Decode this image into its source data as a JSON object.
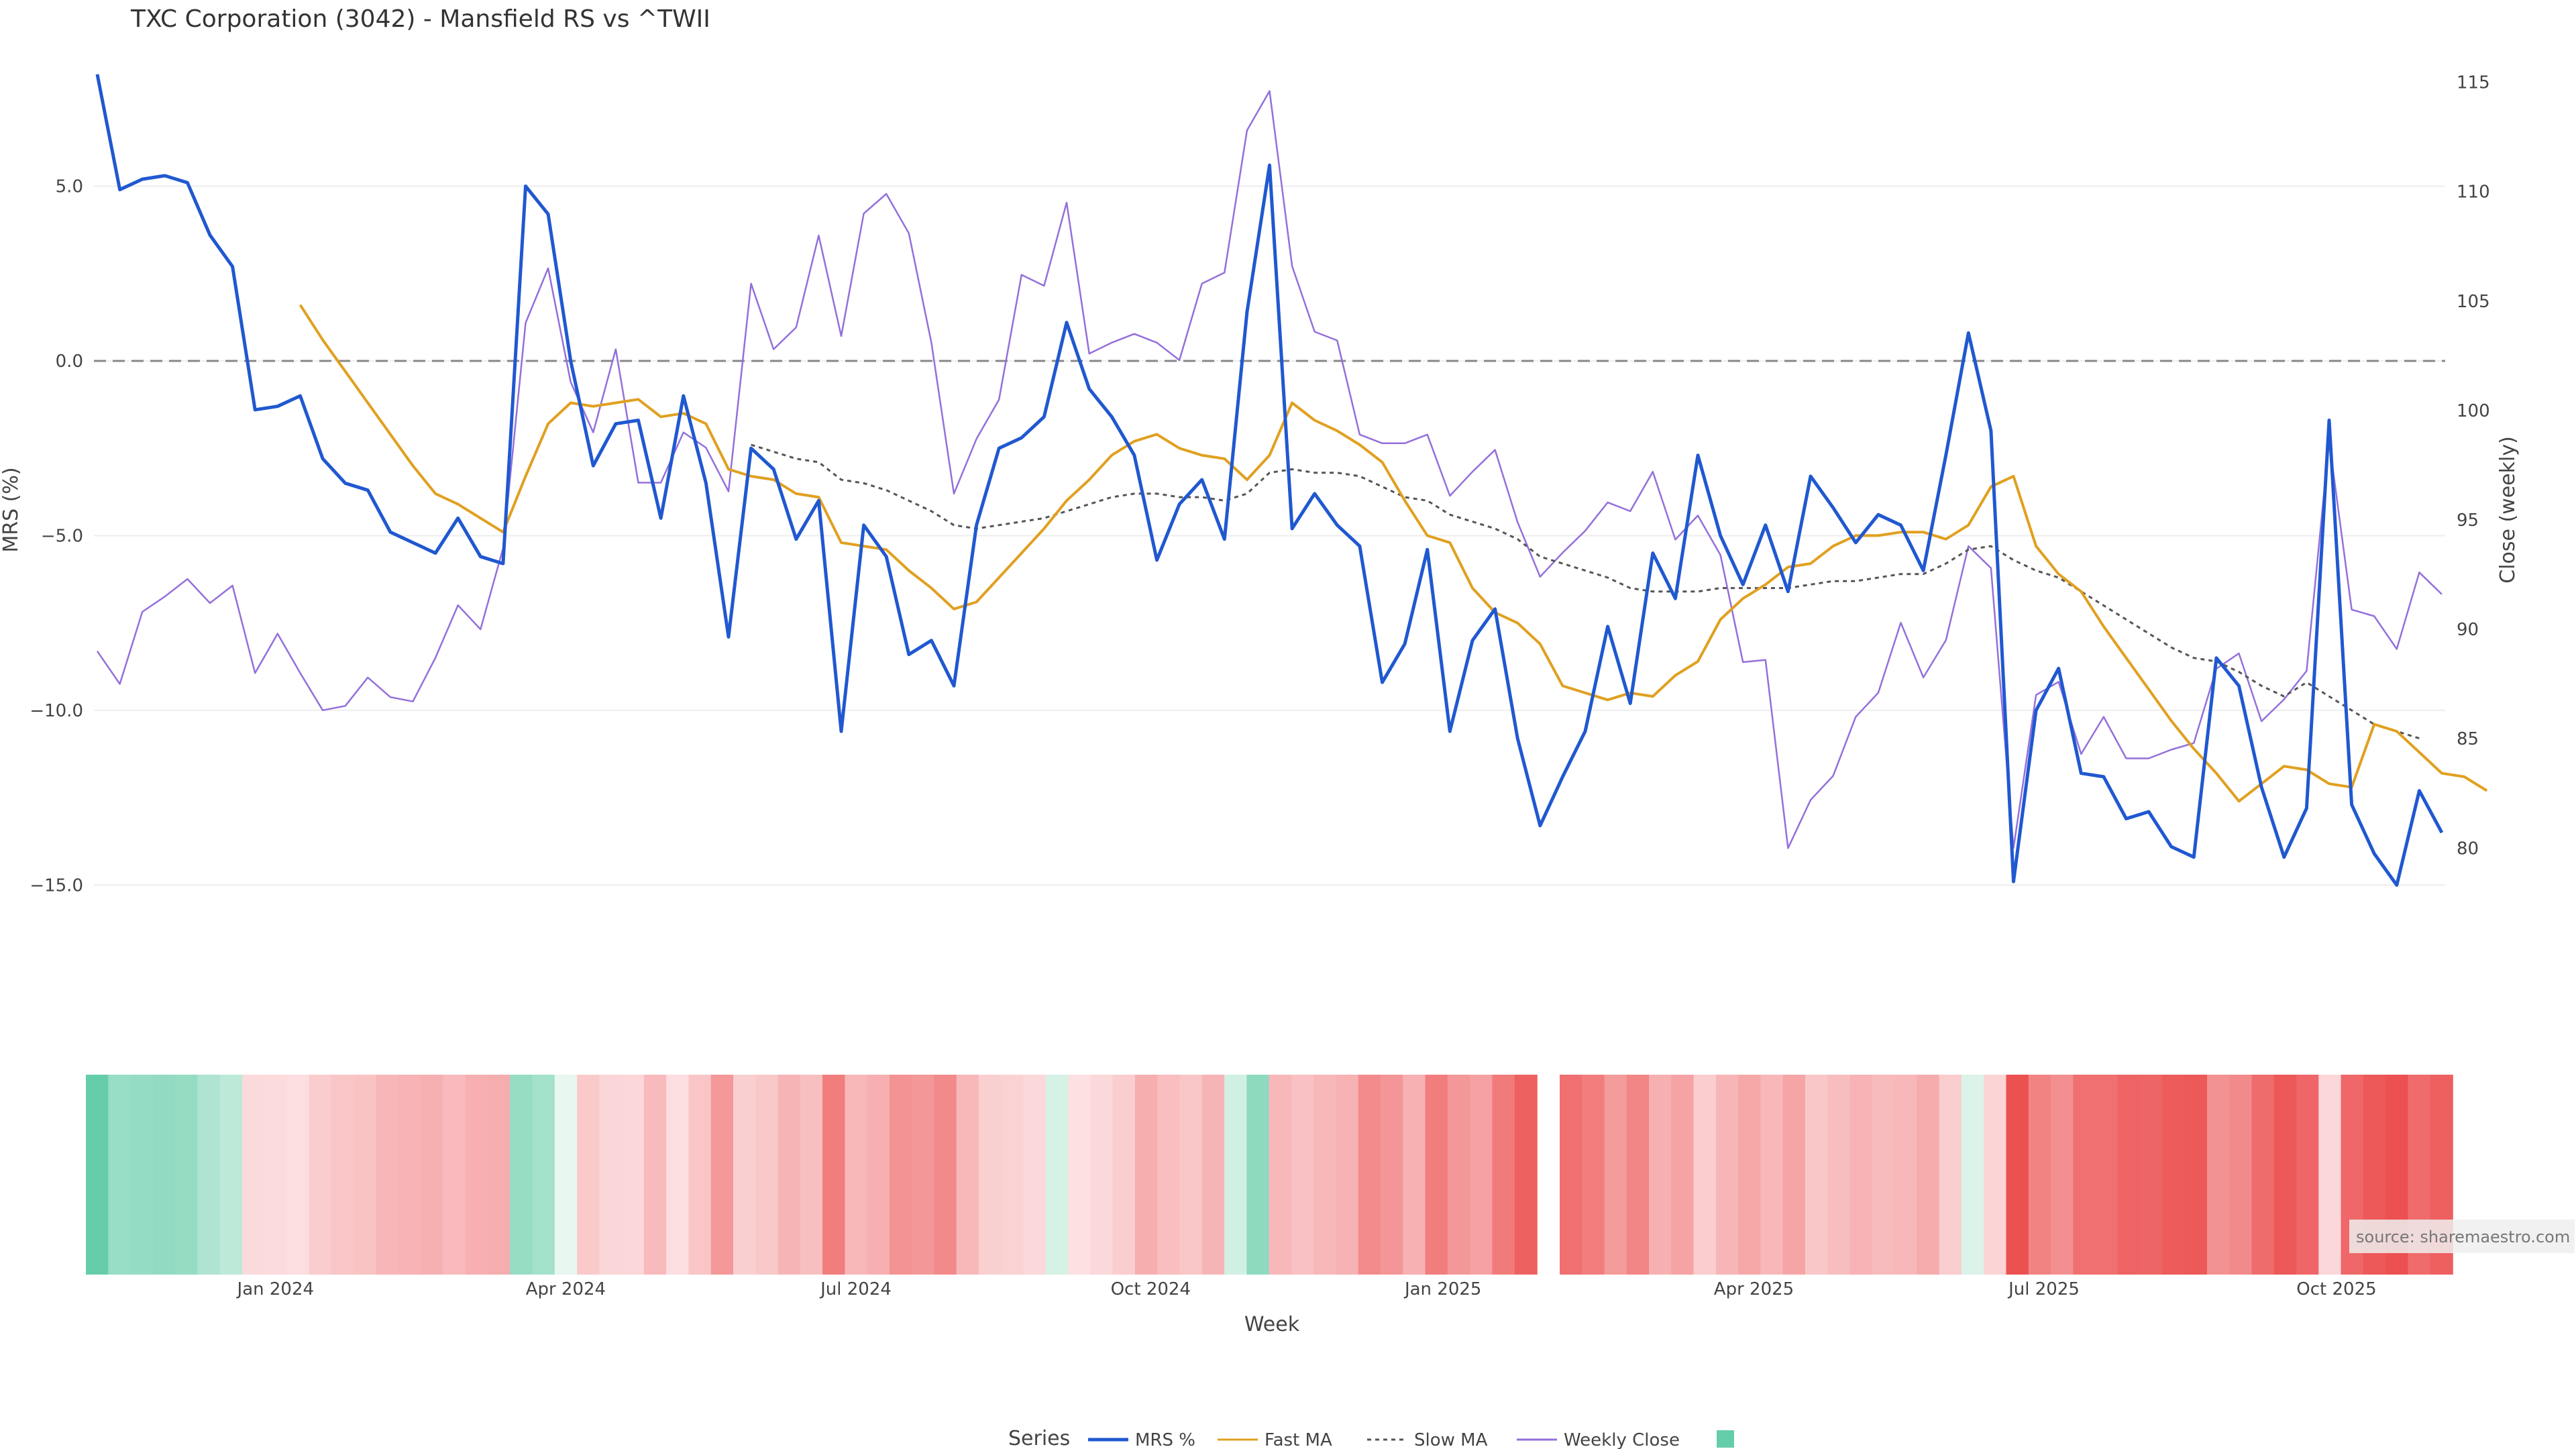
{
  "chart_data": {
    "type": "line",
    "title": "TXC Corporation (3042) - Mansfield RS vs ^TWII",
    "xlabel": "Week",
    "ylabel": "MRS (%)",
    "y2label": "Close (weekly)",
    "ylim": [
      -17.7,
      8.6
    ],
    "y2lim": [
      74.0,
      116.0
    ],
    "yticks": [
      5.0,
      0.0,
      -5.0,
      -10.0,
      -15.0
    ],
    "ytick_labels": [
      "5.0",
      "0.0",
      "−5.0",
      "−10.0",
      "−15.0"
    ],
    "y2ticks": [
      115,
      110,
      105,
      100,
      95,
      90,
      85,
      80
    ],
    "x_tick_labels": [
      {
        "label": "Jan 2024",
        "week": 8.5
      },
      {
        "label": "Apr 2024",
        "week": 21.5
      },
      {
        "label": "Jul 2024",
        "week": 34.5
      },
      {
        "label": "Oct 2024",
        "week": 47.7
      },
      {
        "label": "Jan 2025",
        "week": 60.8
      },
      {
        "label": "Apr 2025",
        "week": 73.7
      },
      {
        "label": "Jul 2025",
        "week": 86.7
      },
      {
        "label": "Oct 2025",
        "week": 99.8
      }
    ],
    "zero_line": 0.0,
    "legend_title": "Series",
    "source": "source: sharemaestro.com",
    "heatmap_gap_after_week": 64,
    "series": [
      {
        "name": "MRS %",
        "color": "#2058d0",
        "axis": "left",
        "start": 0,
        "values": [
          8.2,
          4.9,
          5.2,
          5.3,
          5.1,
          3.6,
          2.7,
          -1.4,
          -1.3,
          -1.0,
          -2.8,
          -3.5,
          -3.7,
          -4.9,
          -5.2,
          -5.5,
          -4.5,
          -5.6,
          -5.8,
          5.0,
          4.2,
          0.0,
          -3.0,
          -1.8,
          -1.7,
          -4.5,
          -1.0,
          -3.5,
          -7.9,
          -2.5,
          -3.1,
          -5.1,
          -4.0,
          -10.6,
          -4.7,
          -5.6,
          -8.4,
          -8.0,
          -9.3,
          -4.7,
          -2.5,
          -2.2,
          -1.6,
          1.1,
          -0.8,
          -1.6,
          -2.7,
          -5.7,
          -4.1,
          -3.4,
          -5.1,
          1.4,
          5.6,
          -4.8,
          -3.8,
          -4.7,
          -5.3,
          -9.2,
          -8.1,
          -5.4,
          -10.6,
          -8.0,
          -7.1,
          -10.8,
          -13.3,
          -11.9,
          -10.6,
          -7.6,
          -9.8,
          -5.5,
          -6.8,
          -2.7,
          -5.0,
          -6.4,
          -4.7,
          -6.6,
          -3.3,
          -4.2,
          -5.2,
          -4.4,
          -4.7,
          -6.0,
          -2.7,
          0.8,
          -2.0,
          -14.9,
          -10.0,
          -8.8,
          -11.8,
          -11.9,
          -13.1,
          -12.9,
          -13.9,
          -14.2,
          -8.5,
          -9.3,
          -12.2,
          -14.2,
          -12.8,
          -1.7,
          -12.7,
          -14.1,
          -15.0,
          -12.3,
          -13.5
        ]
      },
      {
        "name": "Fast MA",
        "color": "#e0a020",
        "axis": "left",
        "start": 9,
        "values": [
          1.6,
          0.6,
          -0.3,
          -1.2,
          -2.1,
          -3.0,
          -3.8,
          -4.1,
          -4.5,
          -4.9,
          -3.3,
          -1.8,
          -1.2,
          -1.3,
          -1.2,
          -1.1,
          -1.6,
          -1.5,
          -1.8,
          -3.1,
          -3.3,
          -3.4,
          -3.8,
          -3.9,
          -5.2,
          -5.3,
          -5.4,
          -6.0,
          -6.5,
          -7.1,
          -6.9,
          -6.2,
          -5.5,
          -4.8,
          -4.0,
          -3.4,
          -2.7,
          -2.3,
          -2.1,
          -2.5,
          -2.7,
          -2.8,
          -3.4,
          -2.7,
          -1.2,
          -1.7,
          -2.0,
          -2.4,
          -2.9,
          -4.0,
          -5.0,
          -5.2,
          -6.5,
          -7.2,
          -7.5,
          -8.1,
          -9.3,
          -9.5,
          -9.7,
          -9.5,
          -9.6,
          -9.0,
          -8.6,
          -7.4,
          -6.8,
          -6.4,
          -5.9,
          -5.8,
          -5.3,
          -5.0,
          -5.0,
          -4.9,
          -4.9,
          -5.1,
          -4.7,
          -3.6,
          -3.3,
          -5.3,
          -6.1,
          -6.6,
          -7.6,
          -8.5,
          -9.4,
          -10.3,
          -11.1,
          -11.8,
          -12.6,
          -12.1,
          -11.6,
          -11.7,
          -12.1,
          -12.2,
          -10.4,
          -10.6,
          -11.2,
          -11.8,
          -11.9,
          -12.3
        ]
      },
      {
        "name": "Slow MA",
        "color": "#555555",
        "axis": "left",
        "start": 29,
        "dashed": true,
        "values": [
          -2.4,
          -2.6,
          -2.8,
          -2.9,
          -3.4,
          -3.5,
          -3.7,
          -4.0,
          -4.3,
          -4.7,
          -4.8,
          -4.7,
          -4.6,
          -4.5,
          -4.3,
          -4.1,
          -3.9,
          -3.8,
          -3.8,
          -3.9,
          -3.9,
          -4.0,
          -3.8,
          -3.2,
          -3.1,
          -3.2,
          -3.2,
          -3.3,
          -3.6,
          -3.9,
          -4.0,
          -4.4,
          -4.6,
          -4.8,
          -5.1,
          -5.6,
          -5.8,
          -6.0,
          -6.2,
          -6.5,
          -6.6,
          -6.6,
          -6.6,
          -6.5,
          -6.5,
          -6.5,
          -6.5,
          -6.4,
          -6.3,
          -6.3,
          -6.2,
          -6.1,
          -6.1,
          -5.8,
          -5.4,
          -5.3,
          -5.7,
          -6.0,
          -6.2,
          -6.6,
          -7.0,
          -7.4,
          -7.8,
          -8.2,
          -8.5,
          -8.6,
          -8.9,
          -9.3,
          -9.6,
          -9.2,
          -9.6,
          -10.0,
          -10.4,
          -10.6,
          -10.8
        ]
      },
      {
        "name": "Weekly Close",
        "color": "#9370db",
        "axis": "right",
        "start": 0,
        "values": [
          89.0,
          87.5,
          90.8,
          91.5,
          92.3,
          91.2,
          92.0,
          88.0,
          89.8,
          88.0,
          86.3,
          86.5,
          87.8,
          86.9,
          86.7,
          88.7,
          91.1,
          90.0,
          93.7,
          104.0,
          106.5,
          101.3,
          99.0,
          102.8,
          96.7,
          96.7,
          99.0,
          98.3,
          96.3,
          105.8,
          102.8,
          103.8,
          108.0,
          103.4,
          109.0,
          109.9,
          108.1,
          103.1,
          96.2,
          98.7,
          100.5,
          106.2,
          105.7,
          109.5,
          102.6,
          103.1,
          103.5,
          103.1,
          102.3,
          105.8,
          106.3,
          112.8,
          114.6,
          106.6,
          103.6,
          103.2,
          98.9,
          98.5,
          98.5,
          98.9,
          96.1,
          97.2,
          98.2,
          94.9,
          92.4,
          93.5,
          94.5,
          95.8,
          95.4,
          97.2,
          94.1,
          95.2,
          93.4,
          88.5,
          88.6,
          80.0,
          82.2,
          83.3,
          86.0,
          87.1,
          90.3,
          87.8,
          89.5,
          93.8,
          92.8,
          80.0,
          87.0,
          87.6,
          84.3,
          86.0,
          84.1,
          84.1,
          84.5,
          84.8,
          88.2,
          88.9,
          85.8,
          86.8,
          88.1,
          98.6,
          90.9,
          90.6,
          89.1,
          92.6,
          91.6
        ]
      }
    ],
    "heatmap": {
      "colormap": "MRS % (green positive, red negative)",
      "values": [
        8.2,
        4.9,
        5.2,
        5.3,
        5.1,
        3.6,
        2.7,
        -1.4,
        -1.3,
        -1.0,
        -2.8,
        -3.5,
        -3.7,
        -4.9,
        -5.2,
        -5.5,
        -4.5,
        -5.6,
        -5.8,
        5.0,
        4.2,
        0.0,
        -3.0,
        -1.8,
        -1.7,
        -4.5,
        -1.0,
        -3.5,
        -7.9,
        -2.5,
        -3.1,
        -5.1,
        -4.0,
        -10.6,
        -4.7,
        -5.6,
        -8.4,
        -8.0,
        -9.3,
        -4.7,
        -2.5,
        -2.2,
        -1.6,
        1.1,
        -0.8,
        -1.6,
        -2.7,
        -5.7,
        -4.1,
        -3.4,
        -5.1,
        1.4,
        5.6,
        -4.8,
        -3.8,
        -4.7,
        -5.3,
        -9.2,
        -8.1,
        -5.4,
        -10.6,
        -8.0,
        -7.1,
        -10.8,
        -13.3,
        -11.9,
        -10.6,
        -7.6,
        -9.8,
        -5.5,
        -6.8,
        -2.7,
        -5.0,
        -6.4,
        -4.7,
        -6.6,
        -3.3,
        -4.2,
        -5.2,
        -4.4,
        -4.7,
        -6.0,
        -2.7,
        0.8,
        -2.0,
        -14.9,
        -10.0,
        -8.8,
        -11.8,
        -11.9,
        -13.1,
        -12.9,
        -13.9,
        -14.2,
        -8.5,
        -9.3,
        -12.2,
        -14.2,
        -12.8,
        -1.7,
        -12.7,
        -14.1,
        -15.0,
        -12.3,
        -13.5
      ]
    }
  }
}
